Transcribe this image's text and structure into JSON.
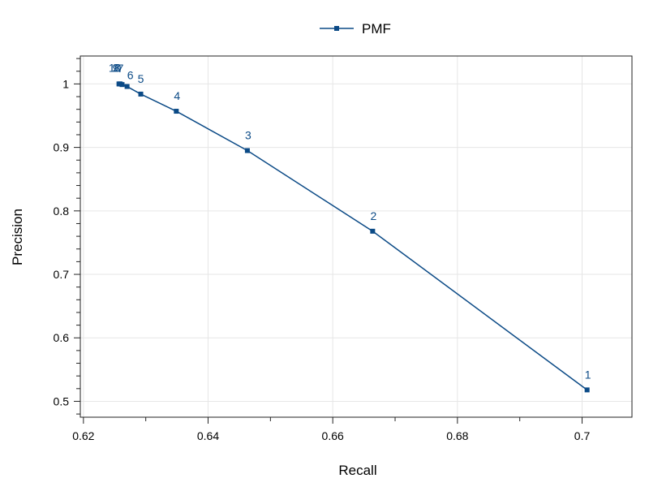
{
  "chart_data": {
    "type": "line",
    "title": "",
    "xlabel": "Recall",
    "ylabel": "Precision",
    "xlim": [
      0.6195,
      0.708
    ],
    "ylim": [
      0.475,
      1.044
    ],
    "x_ticks": [
      0.62,
      0.64,
      0.66,
      0.68,
      0.7
    ],
    "x_tick_labels": [
      "0.62",
      "0.64",
      "0.66",
      "0.68",
      "0.7"
    ],
    "y_ticks": [
      0.5,
      0.6,
      0.7,
      0.8,
      0.9,
      1
    ],
    "y_tick_labels": [
      "0.5",
      "0.6",
      "0.7",
      "0.8",
      "0.9",
      "1"
    ],
    "grid": true,
    "legend_position": "top-center",
    "series": [
      {
        "name": "PMF",
        "color": "#0b4a86",
        "marker": "square",
        "points": [
          {
            "label": "1",
            "x": 0.7008,
            "y": 0.518
          },
          {
            "label": "2",
            "x": 0.6664,
            "y": 0.768
          },
          {
            "label": "3",
            "x": 0.6463,
            "y": 0.895
          },
          {
            "label": "4",
            "x": 0.6349,
            "y": 0.957
          },
          {
            "label": "5",
            "x": 0.6292,
            "y": 0.984
          },
          {
            "label": "6",
            "x": 0.627,
            "y": 0.996
          },
          {
            "label": "7",
            "x": 0.6262,
            "y": 0.999
          },
          {
            "label": "8",
            "x": 0.6259,
            "y": 1.0
          },
          {
            "label": "9",
            "x": 0.6258,
            "y": 1.0
          },
          {
            "label": "10",
            "x": 0.6257,
            "y": 1.0
          }
        ]
      }
    ]
  }
}
